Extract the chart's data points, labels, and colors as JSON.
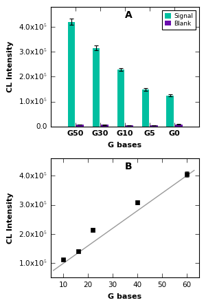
{
  "panel_A": {
    "categories": [
      "G50",
      "G30",
      "G10",
      "G5",
      "G0"
    ],
    "signal_values": [
      420000,
      315000,
      228000,
      148000,
      125000
    ],
    "signal_errors": [
      12000,
      9000,
      6000,
      6000,
      4000
    ],
    "blank_values": [
      8000,
      7000,
      5000,
      4500,
      9000
    ],
    "blank_errors": [
      800,
      700,
      600,
      500,
      900
    ],
    "signal_color": "#00BFA0",
    "blank_color": "#6A0DAD",
    "ylabel": "CL Intensity",
    "xlabel": "G bases",
    "label_A": "A",
    "legend_signal": "Signal",
    "legend_blank": "Blank",
    "ylim": [
      0,
      480000
    ],
    "yticks": [
      0.0,
      100000,
      200000,
      300000,
      400000
    ]
  },
  "panel_B": {
    "x_values": [
      10,
      16,
      22,
      40,
      60
    ],
    "y_values": [
      112000,
      140000,
      215000,
      308000,
      405000
    ],
    "y_errors": [
      4000,
      5000,
      7000,
      7000,
      9000
    ],
    "fit_x": [
      6,
      63
    ],
    "fit_y": [
      75000,
      418000
    ],
    "marker_color": "#000000",
    "line_color": "#999999",
    "ylabel": "CL Intensity",
    "xlabel": "G bases",
    "label_B": "B",
    "xlim": [
      5,
      65
    ],
    "ylim": [
      50000,
      460000
    ],
    "yticks": [
      100000,
      200000,
      300000,
      400000
    ],
    "xticks": [
      10,
      20,
      30,
      40,
      50,
      60
    ]
  }
}
